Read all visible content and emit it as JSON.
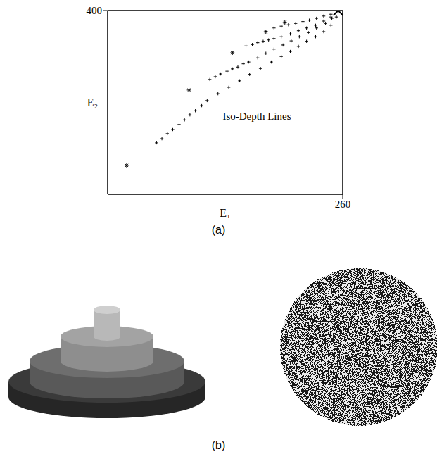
{
  "chart_data": {
    "type": "scatter",
    "xlabel": "E₁",
    "ylabel": "E₂",
    "xlim": [
      0,
      260
    ],
    "ylim": [
      0,
      400
    ],
    "xticks": [
      260
    ],
    "yticks": [
      400
    ],
    "grid": false,
    "annotations": [
      {
        "text": "Iso-Depth Lines",
        "x": 165,
        "y": 170
      }
    ],
    "series": [
      {
        "color": "#000000",
        "marker": "plus",
        "x": [
          54,
          60,
          66,
          72,
          79,
          85,
          91,
          97,
          104,
          110,
          122,
          134,
          146,
          157,
          169,
          181,
          192,
          202,
          211,
          220,
          230,
          239,
          247,
          253
        ],
        "values": [
          112,
          121,
          132,
          141,
          152,
          162,
          173,
          182,
          193,
          204,
          219,
          233,
          247,
          261,
          274,
          288,
          300,
          311,
          322,
          333,
          343,
          354,
          368,
          386
        ]
      },
      {
        "color": "#000000",
        "marker": "plus",
        "x": [
          113,
          119,
          125,
          132,
          138,
          144,
          150,
          156,
          166,
          175,
          184,
          194,
          203,
          212,
          222,
          231,
          241,
          248
        ],
        "values": [
          250,
          256,
          262,
          268,
          273,
          277,
          284,
          288,
          297,
          307,
          316,
          325,
          334,
          343,
          352,
          362,
          372,
          383
        ]
      },
      {
        "color": "#000000",
        "marker": "plus",
        "x": [
          153,
          160,
          166,
          172,
          178,
          184,
          192,
          202,
          211,
          220,
          230,
          239,
          247
        ],
        "values": [
          323,
          326,
          330,
          333,
          336,
          339,
          343,
          349,
          356,
          362,
          368,
          377,
          386
        ]
      },
      {
        "color": "#000000",
        "marker": "plus",
        "x": [
          184,
          192,
          200,
          208,
          216,
          223,
          231,
          239,
          247
        ],
        "values": [
          362,
          366,
          369,
          372,
          376,
          379,
          383,
          388,
          392
        ]
      },
      {
        "color": "#000000",
        "marker": "star",
        "x": [
          21,
          90,
          138,
          175,
          196
        ],
        "values": [
          63,
          227,
          308,
          354,
          374
        ]
      },
      {
        "color": "#000000",
        "marker": "x",
        "x": [
          255
        ],
        "values": [
          400
        ]
      }
    ]
  },
  "captions": {
    "a": "(a)",
    "b": "(b)"
  }
}
